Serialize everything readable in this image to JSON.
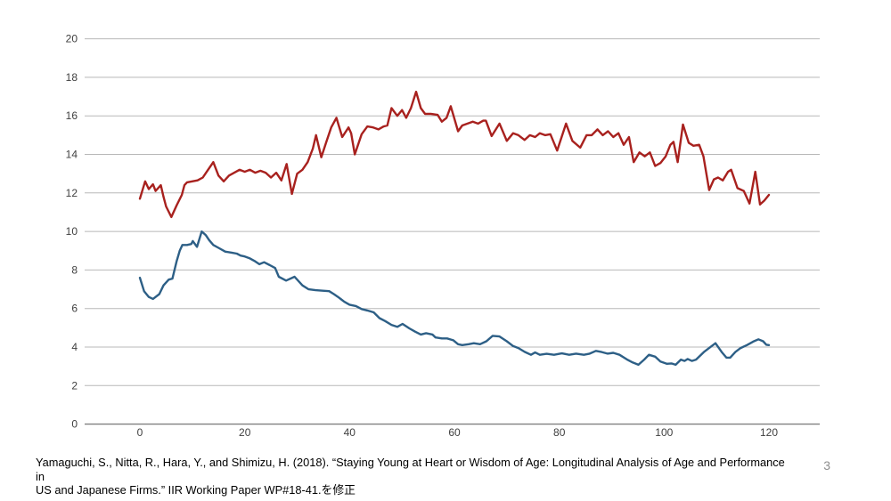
{
  "footer": {
    "lines": [
      "Yamaguchi, S., Nitta, R., Hara, Y., and Shimizu, H. (2018). “Staying Young at Heart or Wisdom of Age: Longitudinal Analysis of Age and Performance in",
      "US and Japanese Firms.” IIR Working Paper WP#18-41.を修正"
    ]
  },
  "page_number": "3",
  "chart_data": {
    "type": "line",
    "title": "",
    "xlabel": "",
    "ylabel": "",
    "xlim": [
      0,
      120
    ],
    "ylim": [
      0,
      20
    ],
    "x_ticks": [
      0,
      20,
      40,
      60,
      80,
      100,
      120
    ],
    "y_ticks": [
      0,
      2,
      4,
      6,
      8,
      10,
      12,
      14,
      16,
      18,
      20
    ],
    "grid": "horizontal",
    "legend": "none",
    "colors": {
      "grid": "#b8b8b8",
      "axis": "#7f7f7f",
      "tick_text": "#3f3f3f"
    },
    "series": [
      {
        "name": "red-series",
        "color": "#a8211e",
        "points": [
          [
            0,
            11.7
          ],
          [
            1,
            12.6
          ],
          [
            1.7,
            12.2
          ],
          [
            2.5,
            12.45
          ],
          [
            3,
            12.1
          ],
          [
            4,
            12.4
          ],
          [
            4.5,
            11.8
          ],
          [
            5,
            11.3
          ],
          [
            6,
            10.75
          ],
          [
            7,
            11.35
          ],
          [
            8,
            11.9
          ],
          [
            8.5,
            12.4
          ],
          [
            9,
            12.55
          ],
          [
            10,
            12.6
          ],
          [
            11,
            12.65
          ],
          [
            12,
            12.8
          ],
          [
            13,
            13.2
          ],
          [
            14,
            13.6
          ],
          [
            15,
            12.9
          ],
          [
            16,
            12.6
          ],
          [
            17,
            12.9
          ],
          [
            18,
            13.05
          ],
          [
            19,
            13.2
          ],
          [
            20,
            13.1
          ],
          [
            21,
            13.2
          ],
          [
            22,
            13.05
          ],
          [
            23,
            13.15
          ],
          [
            24,
            13.05
          ],
          [
            25,
            12.8
          ],
          [
            26,
            13.05
          ],
          [
            27,
            12.65
          ],
          [
            28,
            13.5
          ],
          [
            29,
            11.95
          ],
          [
            30,
            13.0
          ],
          [
            31,
            13.2
          ],
          [
            32,
            13.6
          ],
          [
            33,
            14.3
          ],
          [
            33.6,
            15.0
          ],
          [
            34.6,
            13.85
          ],
          [
            35.5,
            14.6
          ],
          [
            36.5,
            15.4
          ],
          [
            37.5,
            15.9
          ],
          [
            38.6,
            14.9
          ],
          [
            39.8,
            15.4
          ],
          [
            40.3,
            15.1
          ],
          [
            41,
            14.0
          ],
          [
            42.3,
            15.05
          ],
          [
            43.4,
            15.45
          ],
          [
            44.5,
            15.4
          ],
          [
            45.5,
            15.3
          ],
          [
            46.5,
            15.45
          ],
          [
            47.2,
            15.5
          ],
          [
            48,
            16.4
          ],
          [
            49.1,
            16.0
          ],
          [
            50,
            16.3
          ],
          [
            50.8,
            15.9
          ],
          [
            51.7,
            16.4
          ],
          [
            52.7,
            17.25
          ],
          [
            53.6,
            16.4
          ],
          [
            54.4,
            16.1
          ],
          [
            55.5,
            16.1
          ],
          [
            56.8,
            16.05
          ],
          [
            57.6,
            15.7
          ],
          [
            58.5,
            15.9
          ],
          [
            59.3,
            16.5
          ],
          [
            60.7,
            15.2
          ],
          [
            61.5,
            15.5
          ],
          [
            62.5,
            15.6
          ],
          [
            63.5,
            15.7
          ],
          [
            64.5,
            15.6
          ],
          [
            65.5,
            15.75
          ],
          [
            66,
            15.75
          ],
          [
            67.1,
            14.95
          ],
          [
            68.6,
            15.6
          ],
          [
            70,
            14.7
          ],
          [
            71.2,
            15.1
          ],
          [
            72.2,
            15.0
          ],
          [
            73.4,
            14.75
          ],
          [
            74.4,
            15.0
          ],
          [
            75.4,
            14.9
          ],
          [
            76.3,
            15.1
          ],
          [
            77.3,
            15.0
          ],
          [
            78.3,
            15.05
          ],
          [
            79.6,
            14.2
          ],
          [
            81.3,
            15.6
          ],
          [
            82.5,
            14.7
          ],
          [
            84,
            14.35
          ],
          [
            85.2,
            15.0
          ],
          [
            86.2,
            15.0
          ],
          [
            87.3,
            15.3
          ],
          [
            88.3,
            15.0
          ],
          [
            89.3,
            15.2
          ],
          [
            90.3,
            14.9
          ],
          [
            91.3,
            15.1
          ],
          [
            92.3,
            14.5
          ],
          [
            93.3,
            14.9
          ],
          [
            94.2,
            13.6
          ],
          [
            95.3,
            14.1
          ],
          [
            96.3,
            13.9
          ],
          [
            97.3,
            14.1
          ],
          [
            98.3,
            13.4
          ],
          [
            99.3,
            13.55
          ],
          [
            100.3,
            13.9
          ],
          [
            101.2,
            14.5
          ],
          [
            101.8,
            14.65
          ],
          [
            102.6,
            13.6
          ],
          [
            103.6,
            15.55
          ],
          [
            104.7,
            14.6
          ],
          [
            105.6,
            14.45
          ],
          [
            106.7,
            14.5
          ],
          [
            107.5,
            13.9
          ],
          [
            108.6,
            12.15
          ],
          [
            109.5,
            12.7
          ],
          [
            110.3,
            12.8
          ],
          [
            111.2,
            12.65
          ],
          [
            112.2,
            13.1
          ],
          [
            112.8,
            13.2
          ],
          [
            114,
            12.25
          ],
          [
            115.2,
            12.1
          ],
          [
            116.3,
            11.45
          ],
          [
            117.4,
            13.1
          ],
          [
            118.3,
            11.4
          ],
          [
            119.1,
            11.6
          ],
          [
            120,
            11.9
          ]
        ]
      },
      {
        "name": "blue-series",
        "color": "#2d5f86",
        "points": [
          [
            0,
            7.6
          ],
          [
            0.8,
            6.9
          ],
          [
            1.7,
            6.6
          ],
          [
            2.5,
            6.5
          ],
          [
            3.7,
            6.75
          ],
          [
            4.5,
            7.2
          ],
          [
            5.5,
            7.5
          ],
          [
            6.2,
            7.55
          ],
          [
            7,
            8.45
          ],
          [
            7.6,
            9.0
          ],
          [
            8.1,
            9.3
          ],
          [
            9,
            9.3
          ],
          [
            9.8,
            9.35
          ],
          [
            10.1,
            9.5
          ],
          [
            10.9,
            9.2
          ],
          [
            11.8,
            10.0
          ],
          [
            12.6,
            9.8
          ],
          [
            13.2,
            9.55
          ],
          [
            14,
            9.3
          ],
          [
            15,
            9.15
          ],
          [
            16.3,
            8.95
          ],
          [
            17.5,
            8.9
          ],
          [
            18.5,
            8.85
          ],
          [
            19.2,
            8.75
          ],
          [
            20,
            8.7
          ],
          [
            21,
            8.6
          ],
          [
            22,
            8.45
          ],
          [
            22.8,
            8.3
          ],
          [
            23.7,
            8.4
          ],
          [
            24.8,
            8.25
          ],
          [
            25.8,
            8.1
          ],
          [
            26.5,
            7.65
          ],
          [
            27.9,
            7.45
          ],
          [
            29.5,
            7.65
          ],
          [
            31,
            7.2
          ],
          [
            32.2,
            7.0
          ],
          [
            33.5,
            6.95
          ],
          [
            34.6,
            6.93
          ],
          [
            36.1,
            6.9
          ],
          [
            37,
            6.75
          ],
          [
            37.8,
            6.6
          ],
          [
            39,
            6.35
          ],
          [
            40,
            6.2
          ],
          [
            41.2,
            6.13
          ],
          [
            42.3,
            5.97
          ],
          [
            43.4,
            5.9
          ],
          [
            44.6,
            5.8
          ],
          [
            45.7,
            5.5
          ],
          [
            46.8,
            5.35
          ],
          [
            48,
            5.15
          ],
          [
            49.1,
            5.05
          ],
          [
            50.1,
            5.2
          ],
          [
            51.4,
            4.97
          ],
          [
            52.5,
            4.8
          ],
          [
            53.6,
            4.65
          ],
          [
            54.6,
            4.72
          ],
          [
            55.8,
            4.65
          ],
          [
            56.4,
            4.5
          ],
          [
            57.6,
            4.45
          ],
          [
            58.6,
            4.45
          ],
          [
            59.8,
            4.35
          ],
          [
            60.7,
            4.15
          ],
          [
            61.5,
            4.1
          ],
          [
            62.7,
            4.15
          ],
          [
            63.7,
            4.2
          ],
          [
            64.9,
            4.15
          ],
          [
            66.1,
            4.3
          ],
          [
            67.3,
            4.58
          ],
          [
            68.6,
            4.55
          ],
          [
            70,
            4.3
          ],
          [
            71.2,
            4.05
          ],
          [
            72.2,
            3.95
          ],
          [
            73.4,
            3.75
          ],
          [
            74.6,
            3.6
          ],
          [
            75.4,
            3.72
          ],
          [
            76.3,
            3.6
          ],
          [
            77.6,
            3.65
          ],
          [
            79,
            3.6
          ],
          [
            80.5,
            3.67
          ],
          [
            81.9,
            3.6
          ],
          [
            83.2,
            3.66
          ],
          [
            84.7,
            3.6
          ],
          [
            85.8,
            3.66
          ],
          [
            87,
            3.8
          ],
          [
            88.1,
            3.74
          ],
          [
            89.2,
            3.66
          ],
          [
            90.3,
            3.7
          ],
          [
            91.5,
            3.6
          ],
          [
            92.9,
            3.36
          ],
          [
            94,
            3.2
          ],
          [
            95.1,
            3.08
          ],
          [
            96.2,
            3.35
          ],
          [
            97.1,
            3.6
          ],
          [
            98.3,
            3.5
          ],
          [
            99.3,
            3.25
          ],
          [
            100.5,
            3.13
          ],
          [
            101.4,
            3.15
          ],
          [
            102.2,
            3.08
          ],
          [
            103.2,
            3.35
          ],
          [
            103.9,
            3.28
          ],
          [
            104.5,
            3.38
          ],
          [
            105.3,
            3.28
          ],
          [
            106.1,
            3.35
          ],
          [
            107.6,
            3.74
          ],
          [
            108.6,
            3.95
          ],
          [
            109.8,
            4.2
          ],
          [
            111,
            3.74
          ],
          [
            111.9,
            3.45
          ],
          [
            112.6,
            3.45
          ],
          [
            113.6,
            3.74
          ],
          [
            114.6,
            3.95
          ],
          [
            115.8,
            4.1
          ],
          [
            117,
            4.28
          ],
          [
            118,
            4.4
          ],
          [
            118.9,
            4.3
          ],
          [
            119.5,
            4.12
          ],
          [
            120,
            4.1
          ]
        ]
      }
    ]
  }
}
